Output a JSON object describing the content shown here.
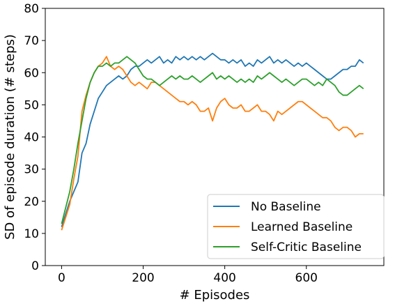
{
  "chart_data": {
    "type": "line",
    "xlabel": "# Episodes",
    "ylabel": "SD of episode duration (# steps)",
    "xlim": [
      -40,
      790
    ],
    "ylim": [
      0,
      80
    ],
    "xticks": [
      0,
      200,
      400,
      600
    ],
    "yticks": [
      0,
      10,
      20,
      30,
      40,
      50,
      60,
      70,
      80
    ],
    "legend_position": "bottom-right",
    "grid": false,
    "series": [
      {
        "name": "No Baseline",
        "color": "#1f77b4",
        "points": [
          [
            0,
            12
          ],
          [
            10,
            16
          ],
          [
            20,
            20
          ],
          [
            30,
            23
          ],
          [
            40,
            26
          ],
          [
            50,
            35
          ],
          [
            60,
            38
          ],
          [
            70,
            44
          ],
          [
            80,
            48
          ],
          [
            90,
            52
          ],
          [
            100,
            54
          ],
          [
            110,
            56
          ],
          [
            120,
            57
          ],
          [
            130,
            58
          ],
          [
            140,
            59
          ],
          [
            150,
            58
          ],
          [
            160,
            59
          ],
          [
            170,
            61
          ],
          [
            180,
            62
          ],
          [
            190,
            62
          ],
          [
            200,
            63
          ],
          [
            210,
            64
          ],
          [
            220,
            63
          ],
          [
            230,
            64
          ],
          [
            240,
            65
          ],
          [
            250,
            63
          ],
          [
            260,
            64
          ],
          [
            270,
            63
          ],
          [
            280,
            65
          ],
          [
            290,
            64
          ],
          [
            300,
            65
          ],
          [
            310,
            64
          ],
          [
            320,
            65
          ],
          [
            330,
            64
          ],
          [
            340,
            65
          ],
          [
            350,
            64
          ],
          [
            360,
            65
          ],
          [
            370,
            66
          ],
          [
            380,
            65
          ],
          [
            390,
            64
          ],
          [
            400,
            64
          ],
          [
            410,
            63
          ],
          [
            420,
            64
          ],
          [
            430,
            63
          ],
          [
            440,
            64
          ],
          [
            450,
            62
          ],
          [
            460,
            63
          ],
          [
            470,
            62
          ],
          [
            480,
            64
          ],
          [
            490,
            63
          ],
          [
            500,
            64
          ],
          [
            510,
            65
          ],
          [
            520,
            63
          ],
          [
            530,
            64
          ],
          [
            540,
            63
          ],
          [
            550,
            64
          ],
          [
            560,
            63
          ],
          [
            570,
            62
          ],
          [
            580,
            63
          ],
          [
            590,
            62
          ],
          [
            600,
            63
          ],
          [
            610,
            62
          ],
          [
            620,
            61
          ],
          [
            630,
            60
          ],
          [
            640,
            59
          ],
          [
            650,
            58
          ],
          [
            660,
            58
          ],
          [
            670,
            59
          ],
          [
            680,
            60
          ],
          [
            690,
            61
          ],
          [
            700,
            61
          ],
          [
            710,
            62
          ],
          [
            720,
            62
          ],
          [
            730,
            64
          ],
          [
            740,
            63
          ]
        ]
      },
      {
        "name": "Learned Baseline",
        "color": "#ff7f0e",
        "points": [
          [
            0,
            11
          ],
          [
            10,
            15
          ],
          [
            20,
            19
          ],
          [
            30,
            27
          ],
          [
            40,
            34
          ],
          [
            50,
            48
          ],
          [
            60,
            53
          ],
          [
            70,
            57
          ],
          [
            80,
            60
          ],
          [
            90,
            62
          ],
          [
            100,
            63
          ],
          [
            110,
            65
          ],
          [
            120,
            62
          ],
          [
            130,
            61
          ],
          [
            140,
            62
          ],
          [
            150,
            61
          ],
          [
            160,
            59
          ],
          [
            170,
            57
          ],
          [
            180,
            56
          ],
          [
            190,
            57
          ],
          [
            200,
            56
          ],
          [
            210,
            55
          ],
          [
            220,
            57
          ],
          [
            230,
            57
          ],
          [
            240,
            56
          ],
          [
            250,
            55
          ],
          [
            260,
            54
          ],
          [
            270,
            53
          ],
          [
            280,
            52
          ],
          [
            290,
            51
          ],
          [
            300,
            51
          ],
          [
            310,
            50
          ],
          [
            320,
            51
          ],
          [
            330,
            50
          ],
          [
            340,
            48
          ],
          [
            350,
            48
          ],
          [
            360,
            49
          ],
          [
            370,
            45
          ],
          [
            380,
            49
          ],
          [
            390,
            51
          ],
          [
            400,
            52
          ],
          [
            410,
            50
          ],
          [
            420,
            49
          ],
          [
            430,
            49
          ],
          [
            440,
            50
          ],
          [
            450,
            48
          ],
          [
            460,
            48
          ],
          [
            470,
            49
          ],
          [
            480,
            50
          ],
          [
            490,
            48
          ],
          [
            500,
            48
          ],
          [
            510,
            47
          ],
          [
            520,
            45
          ],
          [
            530,
            48
          ],
          [
            540,
            47
          ],
          [
            550,
            48
          ],
          [
            560,
            49
          ],
          [
            570,
            50
          ],
          [
            580,
            51
          ],
          [
            590,
            51
          ],
          [
            600,
            50
          ],
          [
            610,
            49
          ],
          [
            620,
            48
          ],
          [
            630,
            47
          ],
          [
            640,
            46
          ],
          [
            650,
            46
          ],
          [
            660,
            45
          ],
          [
            670,
            43
          ],
          [
            680,
            42
          ],
          [
            690,
            43
          ],
          [
            700,
            43
          ],
          [
            710,
            42
          ],
          [
            720,
            40
          ],
          [
            730,
            41
          ],
          [
            740,
            41
          ]
        ]
      },
      {
        "name": "Self-Critic Baseline",
        "color": "#2ca02c",
        "points": [
          [
            0,
            13
          ],
          [
            10,
            18
          ],
          [
            20,
            23
          ],
          [
            30,
            30
          ],
          [
            40,
            38
          ],
          [
            50,
            45
          ],
          [
            60,
            52
          ],
          [
            70,
            57
          ],
          [
            80,
            60
          ],
          [
            90,
            62
          ],
          [
            100,
            62
          ],
          [
            110,
            63
          ],
          [
            120,
            62
          ],
          [
            130,
            63
          ],
          [
            140,
            63
          ],
          [
            150,
            64
          ],
          [
            160,
            65
          ],
          [
            170,
            64
          ],
          [
            180,
            63
          ],
          [
            190,
            61
          ],
          [
            200,
            59
          ],
          [
            210,
            58
          ],
          [
            220,
            58
          ],
          [
            230,
            57
          ],
          [
            240,
            56
          ],
          [
            250,
            57
          ],
          [
            260,
            58
          ],
          [
            270,
            59
          ],
          [
            280,
            58
          ],
          [
            290,
            59
          ],
          [
            300,
            58
          ],
          [
            310,
            58
          ],
          [
            320,
            59
          ],
          [
            330,
            58
          ],
          [
            340,
            57
          ],
          [
            350,
            58
          ],
          [
            360,
            59
          ],
          [
            370,
            60
          ],
          [
            380,
            58
          ],
          [
            390,
            59
          ],
          [
            400,
            58
          ],
          [
            410,
            59
          ],
          [
            420,
            58
          ],
          [
            430,
            57
          ],
          [
            440,
            58
          ],
          [
            450,
            57
          ],
          [
            460,
            58
          ],
          [
            470,
            57
          ],
          [
            480,
            59
          ],
          [
            490,
            58
          ],
          [
            500,
            59
          ],
          [
            510,
            60
          ],
          [
            520,
            59
          ],
          [
            530,
            58
          ],
          [
            540,
            57
          ],
          [
            550,
            58
          ],
          [
            560,
            57
          ],
          [
            570,
            56
          ],
          [
            580,
            57
          ],
          [
            590,
            58
          ],
          [
            600,
            58
          ],
          [
            610,
            57
          ],
          [
            620,
            56
          ],
          [
            630,
            57
          ],
          [
            640,
            56
          ],
          [
            650,
            58
          ],
          [
            660,
            57
          ],
          [
            670,
            56
          ],
          [
            680,
            54
          ],
          [
            690,
            53
          ],
          [
            700,
            53
          ],
          [
            710,
            54
          ],
          [
            720,
            55
          ],
          [
            730,
            56
          ],
          [
            740,
            55
          ]
        ]
      }
    ]
  }
}
